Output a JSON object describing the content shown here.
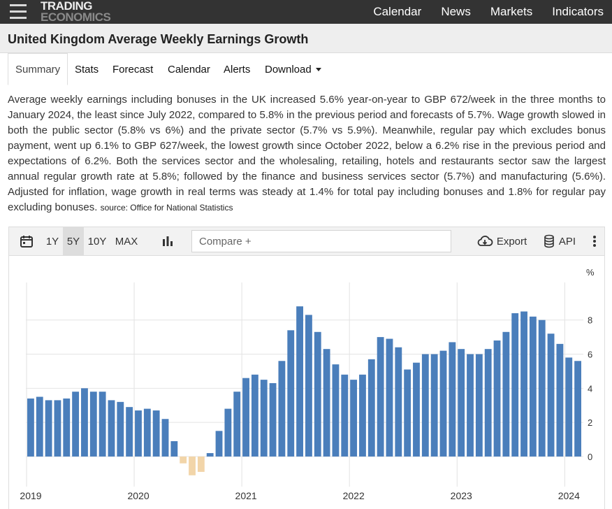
{
  "logo": {
    "line1": "TRADING",
    "line2": "ECONOMICS"
  },
  "topnav": {
    "items": [
      "Calendar",
      "News",
      "Markets",
      "Indicators"
    ]
  },
  "page_title": "United Kingdom Average Weekly Earnings Growth",
  "tabs": {
    "items": [
      "Summary",
      "Stats",
      "Forecast",
      "Calendar",
      "Alerts",
      "Download"
    ],
    "active": "Summary"
  },
  "description": {
    "text": "Average weekly earnings including bonuses in the UK increased 5.6% year-on-year to GBP 672/week in the three months to January 2024, the least since July 2022, compared to 5.8% in the previous period and forecasts of 5.7%. Wage growth slowed in both the public sector (5.8% vs 6%) and the private sector (5.7% vs 5.9%). Meanwhile, regular pay which excludes bonus payment, went up 6.1% to GBP 627/week, the lowest growth since October 2022, below a 6.2% rise in the previous period and expectations of 6.2%. Both the services sector and the wholesaling, retailing, hotels and restaurants sector saw the largest annual regular growth rate at 5.8%; followed by the finance and business services sector (5.7%) and manufacturing (5.6%). Adjusted for inflation, wage growth in real terms was steady at 1.4% for total pay including bonuses and 1.8% for regular pay excluding bonuses.",
    "source": "source: Office for National Statistics"
  },
  "toolbar": {
    "ranges": [
      "1Y",
      "5Y",
      "10Y",
      "MAX"
    ],
    "active_range": "5Y",
    "compare_placeholder": "Compare +",
    "export_label": "Export",
    "api_label": "API",
    "icons": [
      "calendar-icon",
      "bar-chart-icon",
      "cloud-download-icon",
      "database-icon",
      "more-vertical-icon"
    ]
  },
  "colors": {
    "positive_bar": "#4a7ebb",
    "negative_bar": "#f2d5a9",
    "topbar": "#333333",
    "grid": "#e4e4e4"
  },
  "chart_data": {
    "type": "bar",
    "unit_label": "%",
    "y_ticks": [
      0,
      2,
      4,
      6,
      8
    ],
    "ylim": [
      -1.6,
      10.2
    ],
    "x_ticks": [
      "2019",
      "2020",
      "2021",
      "2022",
      "2023",
      "2024"
    ],
    "grid": true,
    "series": [
      {
        "values": [
          3.4,
          3.5,
          3.3,
          3.3,
          3.4,
          3.8,
          4.0,
          3.8,
          3.8,
          3.3,
          3.2,
          2.9,
          2.7,
          2.8,
          2.7,
          2.2,
          0.9,
          -0.4,
          -1.1,
          -0.9,
          0.2,
          1.5,
          2.8,
          3.8,
          4.6,
          4.8,
          4.5,
          4.3,
          5.6,
          7.4,
          8.8,
          8.3,
          7.3,
          6.3,
          5.4,
          4.8,
          4.5,
          4.8,
          5.7,
          7.0,
          6.9,
          6.4,
          5.1,
          5.5,
          6.0,
          6.0,
          6.2,
          6.7,
          6.3,
          6.0,
          6.0,
          6.3,
          6.8,
          7.3,
          8.4,
          8.5,
          8.2,
          8.0,
          7.2,
          6.6,
          5.8,
          5.6
        ]
      }
    ]
  }
}
